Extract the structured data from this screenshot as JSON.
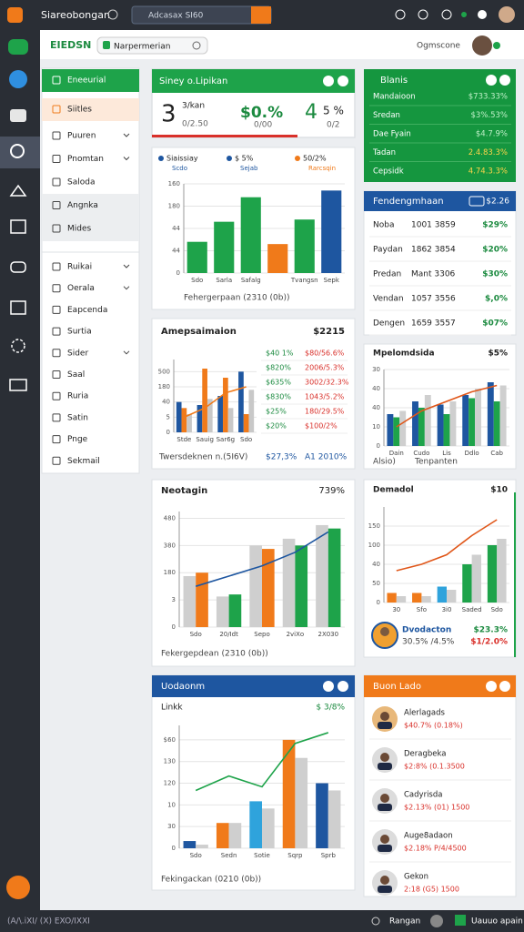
{
  "topbar": {
    "title": "Siareobongan",
    "search": "Adcasax SI60"
  },
  "header": {
    "brand": "EIEDSN",
    "search": "Narpermerian",
    "user": "Ogmscone"
  },
  "nav": {
    "primary": [
      "Eneeurial",
      "Siitles",
      "Puuren",
      "Pnomtan",
      "Saloda",
      "Angnka",
      "Mides"
    ],
    "secondary": [
      "Ruikai",
      "Oerala",
      "Eapcenda",
      "Surtia",
      "Sider",
      "Saal",
      "Ruria",
      "Satin",
      "Pnge",
      "Sekmail"
    ]
  },
  "kpi": {
    "title": "Siney o.Lipikan",
    "value1": "3",
    "label1": "3/kan",
    "sub1": "0/2.50",
    "value2": "$0.%",
    "sub2": "0/00",
    "value3": "4",
    "value4": "5 %",
    "sub4": "0/2"
  },
  "sales": {
    "legend": [
      {
        "name": "Siaissiay",
        "sub": "Scdo",
        "color": "#1e56a0"
      },
      {
        "name": "$ 5%",
        "sub": "Sejab",
        "color": "#1e56a0"
      },
      {
        "name": "50/2%",
        "sub": "Rarcsqin",
        "color": "#f07a1a"
      }
    ],
    "chart": {
      "type": "bar",
      "categories": [
        "Sdo",
        "Sarla",
        "Safalg",
        null,
        "Tvangsn",
        "Sepk"
      ],
      "series": [
        {
          "colors": [
            "#1ea34a",
            "#1ea34a",
            "#1ea34a",
            "#f07a1a",
            "#1ea34a",
            "#1e56a0"
          ],
          "values": [
            70,
            115,
            170,
            65,
            120,
            185
          ]
        }
      ],
      "ylim": [
        0,
        200
      ],
      "yticks": [
        0,
        {
          "value": 50,
          "label": "44"
        },
        {
          "value": 100,
          "label": "44"
        },
        {
          "value": 150,
          "label": "180"
        },
        {
          "value": 200,
          "label": "160"
        }
      ]
    },
    "footer": "Fehergerpaan (2310 (0b))"
  },
  "amp": {
    "title": "Amepsaimaion",
    "total": "$2215",
    "chart": {
      "type": "bar",
      "categories": [
        "Stde",
        "Sauig",
        "Sar6g",
        "Sdo"
      ],
      "series": [
        {
          "color": "#1e56a0",
          "values": [
            50,
            45,
            60,
            100
          ]
        },
        {
          "color": "#f07a1a",
          "values": [
            40,
            105,
            90,
            30
          ]
        },
        {
          "color": "#c8c8c8",
          "values": [
            30,
            55,
            40,
            70
          ]
        }
      ],
      "line": {
        "color": "#f07a1a",
        "values": [
          25,
          40,
          65,
          75
        ]
      },
      "ylim": [
        0,
        120
      ],
      "yticks": [
        0,
        {
          "value": 25,
          "label": "5"
        },
        {
          "value": 50,
          "label": "40"
        },
        {
          "value": 75,
          "label": "180"
        },
        {
          "value": 100,
          "label": "500"
        }
      ]
    },
    "table": [
      [
        "$40 1%",
        "$80/56.6%"
      ],
      [
        "$820%",
        "2006/5.3%"
      ],
      [
        "$635%",
        "3002/32.3%"
      ],
      [
        "$830%",
        "1043/5.2%"
      ],
      [
        "$25%",
        "180/29.5%"
      ],
      [
        "$20%",
        "$100/2%"
      ]
    ],
    "footer": "Twersdeknen n.(5I6V)",
    "footer_a": "$27,3%",
    "footer_b": "A1 2010%"
  },
  "trend": {
    "title": "Neotagin",
    "value": "739%",
    "chart": {
      "type": "bar",
      "categories": [
        "Sdo",
        "20/Idt",
        "Sepo",
        "2viXo",
        "2X030"
      ],
      "series": [
        {
          "color": "#cfcfcf",
          "values": [
            75,
            45,
            120,
            130,
            150
          ]
        },
        {
          "colors": [
            "#f07a1a",
            "#1ea34a",
            "#f07a1a",
            "#1ea34a",
            "#1ea34a"
          ],
          "values": [
            80,
            48,
            115,
            120,
            145
          ]
        }
      ],
      "line": {
        "color": "#1e56a0",
        "values": [
          60,
          75,
          90,
          110,
          140
        ]
      },
      "ylim": [
        0,
        170
      ],
      "yticks": [
        0,
        {
          "value": 40,
          "label": "3"
        },
        {
          "value": 80,
          "label": "180"
        },
        {
          "value": 120,
          "label": "380"
        },
        {
          "value": 160,
          "label": "480"
        }
      ]
    },
    "footer": "Fekergepdean (2310 (0b))"
  },
  "update": {
    "title": "Uodaonm",
    "label": "Linkk",
    "value": "$ 3/8%",
    "chart": {
      "type": "bar",
      "categories": [
        "Sdo",
        "Sedn",
        "Sotie",
        "Sqrp",
        "Sprb"
      ],
      "series": [
        {
          "colors": [
            "#1e56a0",
            "#f07a1a",
            "#2fa3dc",
            "#f07a1a",
            "#1e56a0"
          ],
          "values": [
            10,
            35,
            65,
            150,
            90
          ]
        },
        {
          "color": "#cfcfcf",
          "values": [
            5,
            35,
            55,
            125,
            80
          ]
        }
      ],
      "line": {
        "color": "#1ea34a",
        "values": [
          80,
          100,
          85,
          145,
          160
        ]
      },
      "ylim": [
        0,
        170
      ],
      "yticks": [
        0,
        30,
        {
          "value": 60,
          "label": "10"
        },
        {
          "value": 90,
          "label": "120"
        },
        {
          "value": 120,
          "label": "130"
        },
        {
          "value": 150,
          "label": "$60"
        }
      ]
    },
    "footer": "Fekingackan (0210 (0b))"
  },
  "balances": {
    "title": "Blanis",
    "rows": [
      [
        "Mandaioon",
        "$733.33%"
      ],
      [
        "Sredan",
        "$3%.53%"
      ],
      [
        "Dae Fyain",
        "$4.7.9%"
      ],
      [
        "Tadan",
        "2.4.83.3%"
      ],
      [
        "Cepsidk",
        "4.74.3.3%"
      ]
    ]
  },
  "pending": {
    "title": "Fendengmhaan",
    "value": "$2.26",
    "rows": [
      [
        "Noba",
        "1001 3859",
        "$29%"
      ],
      [
        "Paydan",
        "1862 3854",
        "$20%"
      ],
      [
        "Predan",
        "Mant 3306",
        "$30%"
      ],
      [
        "Vendan",
        "1057 3556",
        "$,0%"
      ],
      [
        "Dengen",
        "1659 3557",
        "$07%"
      ]
    ]
  },
  "mpel": {
    "title": "Mpelomdsida",
    "value": "$5%",
    "chart": {
      "type": "bar",
      "categories": [
        "Dain",
        "Cudo",
        "Lis",
        "Ddlo",
        "Cab"
      ],
      "series": [
        {
          "color": "#1e56a0",
          "values": [
            50,
            70,
            65,
            80,
            100
          ]
        },
        {
          "color": "#1ea34a",
          "values": [
            45,
            60,
            50,
            75,
            70
          ]
        },
        {
          "color": "#cfcfcf",
          "values": [
            55,
            80,
            70,
            90,
            95
          ]
        }
      ],
      "line": {
        "color": "#e0571a",
        "values": [
          30,
          55,
          70,
          85,
          95
        ]
      },
      "ylim": [
        0,
        120
      ],
      "yticks": [
        0,
        {
          "value": 30,
          "label": "10"
        },
        {
          "value": 60,
          "label": "40"
        },
        {
          "value": 90,
          "label": "40"
        },
        {
          "value": 120,
          "label": "30"
        }
      ]
    },
    "footer_a": "Alsio)",
    "footer_b": "Tenpanten"
  },
  "demand": {
    "title": "Demadol",
    "value": "$10",
    "chart": {
      "type": "bar",
      "categories": [
        "30",
        "Sfo",
        "3i0",
        "Saded",
        "Sdo"
      ],
      "series": [
        {
          "colors": [
            "#f07a1a",
            "#f07a1a",
            "#2fa3dc",
            "#1ea34a",
            "#1ea34a"
          ],
          "values": [
            15,
            15,
            25,
            60,
            90
          ]
        },
        {
          "color": "#cfcfcf",
          "values": [
            10,
            10,
            20,
            75,
            100
          ]
        }
      ],
      "line": {
        "color": "#e0571a",
        "values": [
          50,
          60,
          75,
          105,
          130
        ]
      },
      "ylim": [
        0,
        150
      ],
      "yticks": [
        0,
        {
          "value": 30,
          "label": "50"
        },
        {
          "value": 60,
          "label": "40"
        },
        {
          "value": 90,
          "label": "100"
        },
        {
          "value": 120,
          "label": "150"
        }
      ]
    },
    "person": {
      "name": "Dvodacton",
      "value": "$23.3%",
      "sub": "30.5% /4.5%",
      "sub2": "$1/2.0%"
    }
  },
  "people": {
    "title": "Buon Lado",
    "list": [
      {
        "name": "Alerlagads",
        "detail": "$40.7% (0.18%)"
      },
      {
        "name": "Deragbeka",
        "detail": "$2:8% (0.1.3500"
      },
      {
        "name": "Cadyrisda",
        "detail": "$2.13% (01) 1500"
      },
      {
        "name": "Auge8adaon",
        "detail": "$2.18% P/4/4500"
      },
      {
        "name": "Gekon",
        "detail": "2:18 (G5) 1500"
      }
    ]
  },
  "bottombar": {
    "left": "(A/\\.iXI/ (X) EXO/IXXI",
    "right1": "Rangan",
    "right2": "Uauuo apain"
  }
}
